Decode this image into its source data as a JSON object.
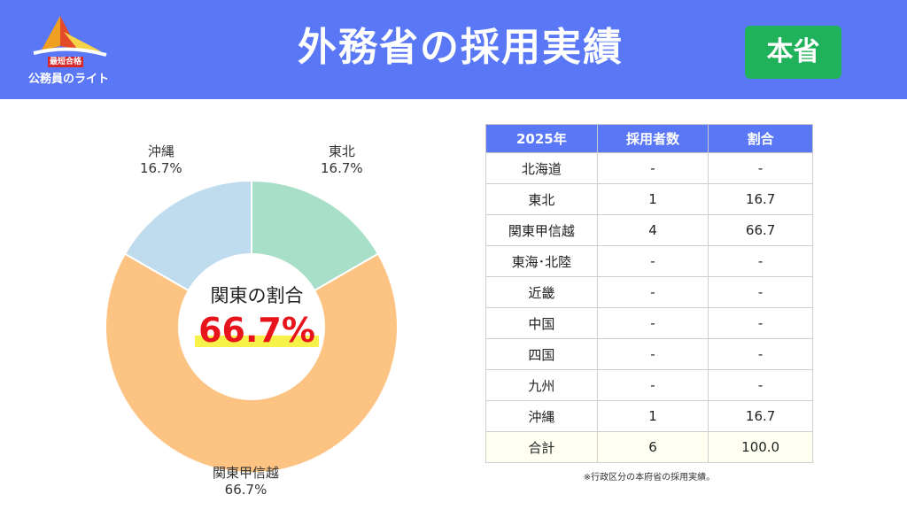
{
  "header": {
    "logo_box": "最短合格",
    "logo_sub": "公務員のライト",
    "title": "外務省の採用実績",
    "badge": "本省"
  },
  "colors": {
    "header_bg": "#5a78f5",
    "badge_bg": "#1fb25a",
    "highlight_value": "#e8141c"
  },
  "chart_data": {
    "type": "pie",
    "style": "donut",
    "slices": [
      {
        "label": "東北",
        "value": 16.7,
        "pct_text": "16.7%",
        "color": "#a8dfc8"
      },
      {
        "label": "関東甲信越",
        "value": 66.7,
        "pct_text": "66.7%",
        "color": "#fdc383"
      },
      {
        "label": "沖縄",
        "value": 16.7,
        "pct_text": "16.7%",
        "color": "#bfdcef"
      }
    ],
    "center_title": "関東の割合",
    "center_value": "66.7%"
  },
  "table": {
    "headers": [
      "2025年",
      "採用者数",
      "割合"
    ],
    "rows": [
      [
        "北海道",
        "-",
        "-"
      ],
      [
        "東北",
        "1",
        "16.7"
      ],
      [
        "関東甲信越",
        "4",
        "66.7"
      ],
      [
        "東海･北陸",
        "-",
        "-"
      ],
      [
        "近畿",
        "-",
        "-"
      ],
      [
        "中国",
        "-",
        "-"
      ],
      [
        "四国",
        "-",
        "-"
      ],
      [
        "九州",
        "-",
        "-"
      ],
      [
        "沖縄",
        "1",
        "16.7"
      ]
    ],
    "total": [
      "合計",
      "6",
      "100.0"
    ]
  },
  "note": "※行政区分の本府省の採用実績。"
}
